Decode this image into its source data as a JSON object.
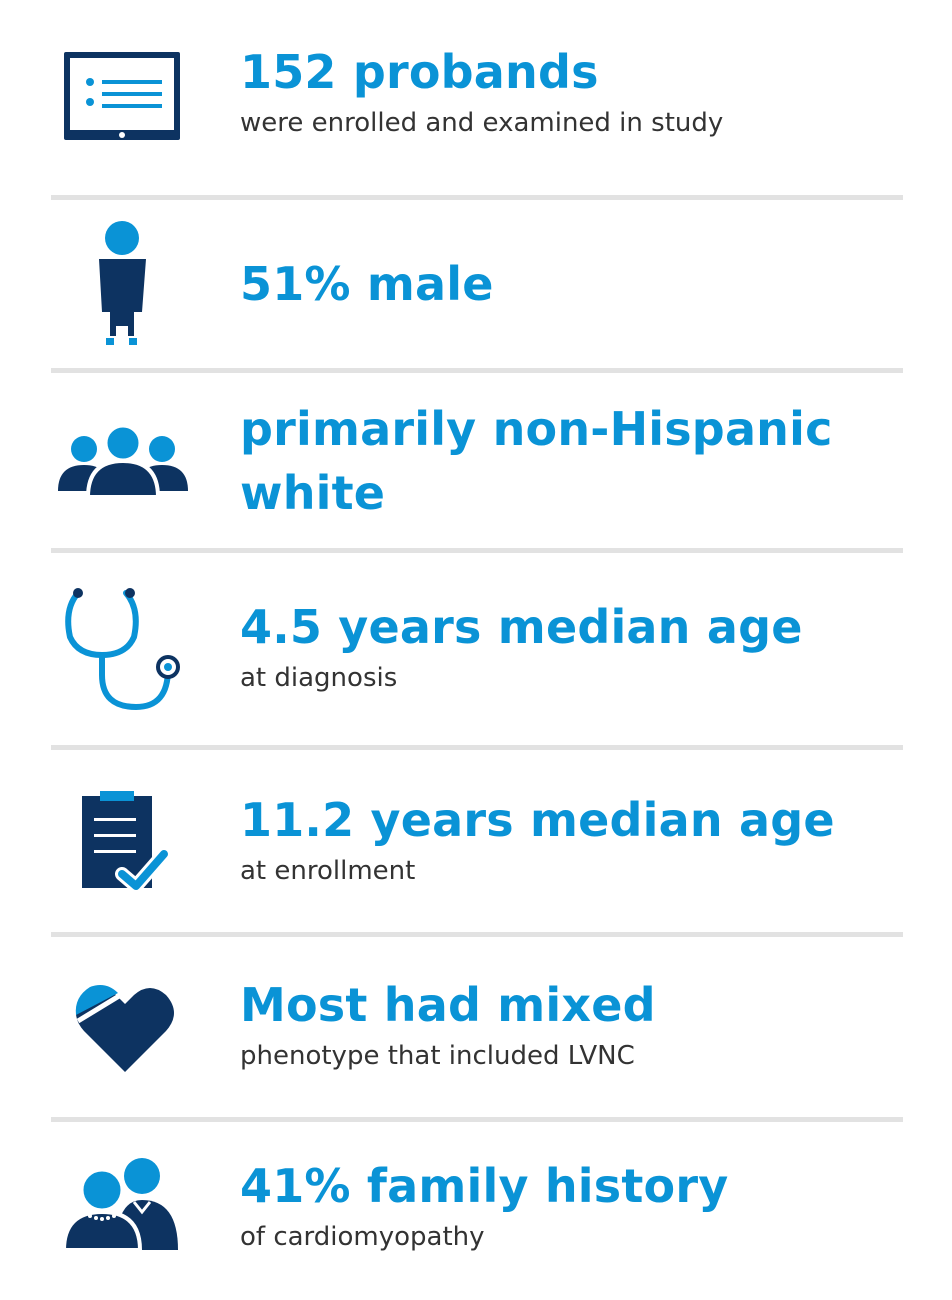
{
  "colors": {
    "accent": "#0a93d6",
    "navy": "#0d3361",
    "text": "#333333",
    "divider": "#e2e2e2"
  },
  "stats": [
    {
      "icon": "tablet-list-icon",
      "headline": "152 probands",
      "sub": "were enrolled and examined in study"
    },
    {
      "icon": "person-icon",
      "headline": "51% male",
      "sub": ""
    },
    {
      "icon": "group-icon",
      "headline": "primarily non-Hispanic white",
      "sub": ""
    },
    {
      "icon": "stethoscope-icon",
      "headline": "4.5 years median age",
      "sub": "at diagnosis"
    },
    {
      "icon": "clipboard-check-icon",
      "headline": "11.2 years median age",
      "sub": "at enrollment"
    },
    {
      "icon": "heart-icon",
      "headline": "Most had mixed",
      "sub": "phenotype that included LVNC"
    },
    {
      "icon": "family-icon",
      "headline": "41% family history",
      "sub": "of cardiomyopathy"
    }
  ]
}
